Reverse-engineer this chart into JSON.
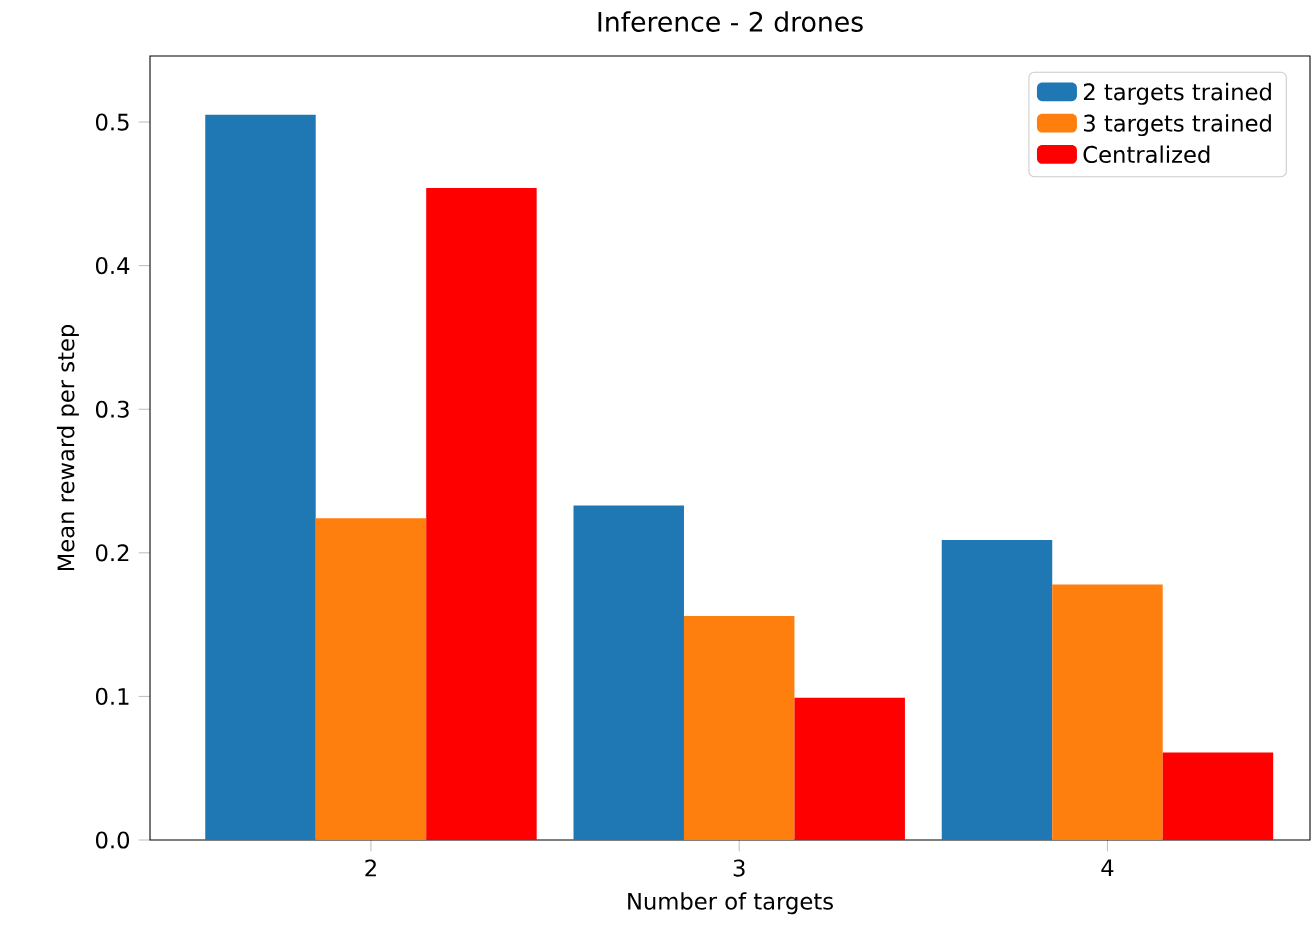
{
  "chart_data": {
    "type": "bar",
    "title": "Inference - 2 drones",
    "xlabel": "Number of targets",
    "ylabel": "Mean reward per step",
    "categories": [
      "2",
      "3",
      "4"
    ],
    "series": [
      {
        "name": "2 targets trained",
        "color": "#1f77b4",
        "values": [
          0.505,
          0.233,
          0.209
        ]
      },
      {
        "name": "3 targets trained",
        "color": "#ff7f0e",
        "values": [
          0.224,
          0.156,
          0.178
        ]
      },
      {
        "name": "Centralized",
        "color": "#ff0000",
        "values": [
          0.454,
          0.099,
          0.061
        ]
      }
    ],
    "ylim": [
      0,
      0.546
    ],
    "yticks": [
      {
        "value": 0,
        "label": "0.0"
      },
      {
        "value": 0.1,
        "label": "0.1"
      },
      {
        "value": 0.2,
        "label": "0.2"
      },
      {
        "value": 0.3,
        "label": "0.3"
      },
      {
        "value": 0.4,
        "label": "0.4"
      },
      {
        "value": 0.5,
        "label": "0.5"
      }
    ],
    "grid": false,
    "legend": "top right"
  }
}
